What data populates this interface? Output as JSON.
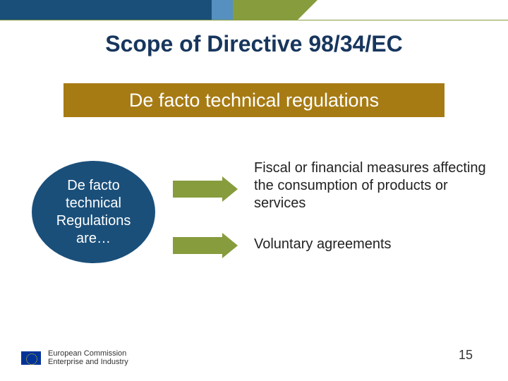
{
  "colors": {
    "navy": "#1a4f7a",
    "lightblue": "#5690c0",
    "olive": "#879c3d",
    "gold": "#a77b14",
    "darktitle": "#17365d",
    "text": "#222222",
    "white": "#ffffff",
    "euflag_bg": "#003399",
    "euflag_star": "#ffcc00"
  },
  "title": "Scope of Directive 98/34/EC",
  "subtitle": "De facto technical regulations",
  "ellipse": {
    "line1": "De facto",
    "line2": "technical",
    "line3": "Regulations",
    "line4": "are…"
  },
  "items": {
    "item1": "Fiscal or financial measures affecting the consumption of products or services",
    "item2": "Voluntary agreements"
  },
  "footer": {
    "line1": "European Commission",
    "line2": "Enterprise and Industry"
  },
  "page_number": "15"
}
